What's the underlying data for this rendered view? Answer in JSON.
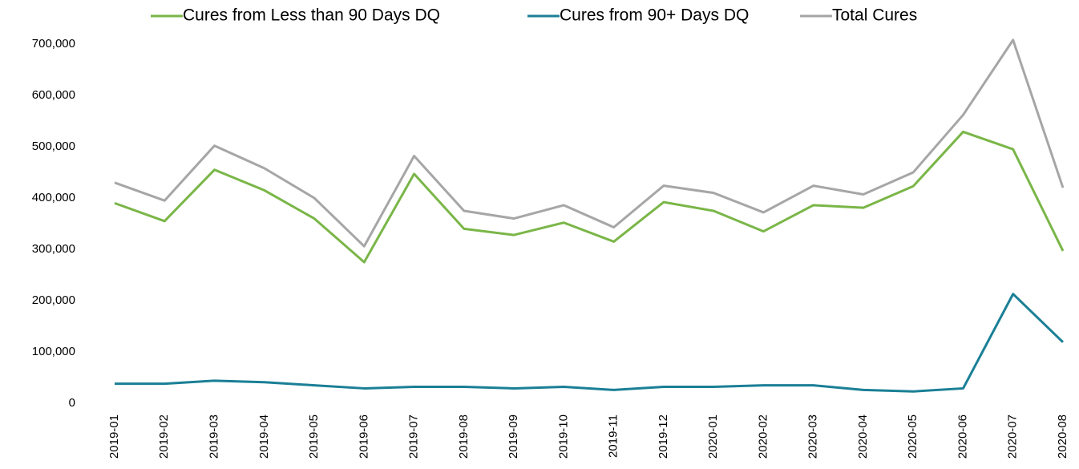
{
  "chart_data": {
    "type": "line",
    "categories": [
      "2019-01",
      "2019-02",
      "2019-03",
      "2019-04",
      "2019-05",
      "2019-06",
      "2019-07",
      "2019-08",
      "2019-09",
      "2019-10",
      "2019-11",
      "2019-12",
      "2020-01",
      "2020-02",
      "2020-03",
      "2020-04",
      "2020-05",
      "2020-06",
      "2020-07",
      "2020-08"
    ],
    "series": [
      {
        "name": "Cures from Less than 90 Days DQ",
        "color": "#7ab648",
        "values": [
          390000,
          355000,
          455000,
          415000,
          360000,
          275000,
          447000,
          340000,
          328000,
          352000,
          315000,
          392000,
          375000,
          335000,
          386000,
          381000,
          423000,
          529000,
          495000,
          297000
        ]
      },
      {
        "name": "Cures from 90+ Days DQ",
        "color": "#1a7f96",
        "values": [
          38000,
          38000,
          44000,
          41000,
          35000,
          29000,
          32000,
          32000,
          29000,
          32000,
          26000,
          32000,
          32000,
          35000,
          35000,
          26000,
          23000,
          29000,
          213000,
          119000
        ]
      },
      {
        "name": "Total Cures",
        "color": "#a6a6a6",
        "values": [
          430000,
          395000,
          502000,
          458000,
          400000,
          306000,
          482000,
          375000,
          360000,
          386000,
          343000,
          424000,
          410000,
          372000,
          424000,
          407000,
          450000,
          562000,
          708000,
          420000
        ]
      }
    ],
    "ylim": [
      0,
      700000
    ],
    "yticks": [
      0,
      {
        "value": 100000,
        "label": "100,000"
      },
      {
        "value": 200000,
        "label": "200,000"
      },
      {
        "value": 300000,
        "label": "300,000"
      },
      {
        "value": 400000,
        "label": "400,000"
      },
      {
        "value": 500000,
        "label": "500,000"
      },
      {
        "value": 600000,
        "label": "600,000"
      },
      {
        "value": 700000,
        "label": "700,000"
      }
    ],
    "legend": "top"
  }
}
